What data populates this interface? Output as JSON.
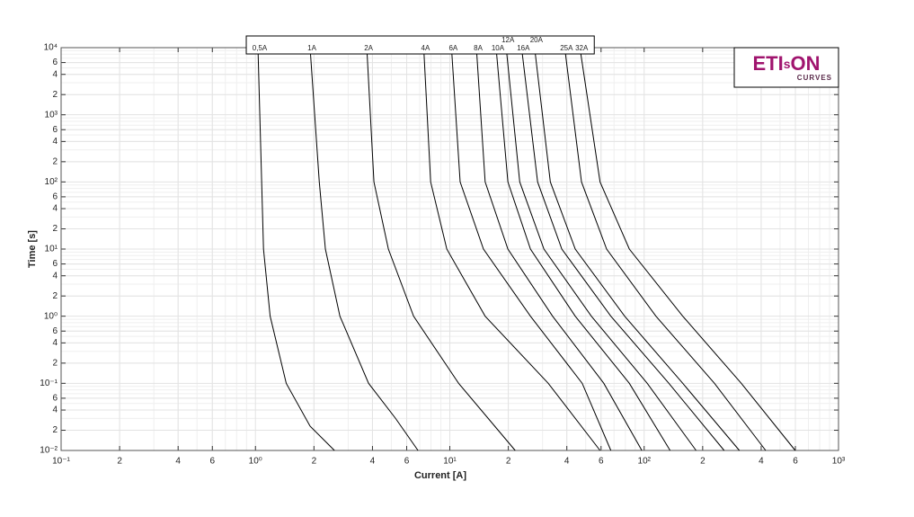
{
  "chart_data": {
    "type": "line",
    "xlabel": "Current [A]",
    "ylabel": "Time [s]",
    "xscale": "log",
    "yscale": "log",
    "grid": true,
    "minor_grid": true,
    "xlim": [
      0.1,
      1000
    ],
    "ylim": [
      0.01,
      10000
    ],
    "xticks": [
      {
        "value": 0.1,
        "label": "10⁻¹"
      },
      {
        "value": 0.2,
        "label": "2"
      },
      {
        "value": 0.4,
        "label": "4"
      },
      {
        "value": 0.6,
        "label": "6"
      },
      {
        "value": 1,
        "label": "10⁰"
      },
      2,
      4,
      6,
      {
        "value": 10,
        "label": "10¹"
      },
      {
        "value": 20,
        "label": "2"
      },
      {
        "value": 40,
        "label": "4"
      },
      {
        "value": 60,
        "label": "6"
      },
      {
        "value": 100,
        "label": "10²"
      },
      {
        "value": 200,
        "label": "2"
      },
      {
        "value": 400,
        "label": "4"
      },
      {
        "value": 600,
        "label": "6"
      },
      {
        "value": 1000,
        "label": "10³"
      }
    ],
    "yticks": [
      {
        "value": 0.01,
        "label": "10⁻²"
      },
      {
        "value": 0.02,
        "label": "2"
      },
      {
        "value": 0.04,
        "label": "4"
      },
      {
        "value": 0.06,
        "label": "6"
      },
      {
        "value": 0.1,
        "label": "10⁻¹"
      },
      {
        "value": 0.2,
        "label": "2"
      },
      {
        "value": 0.4,
        "label": "4"
      },
      {
        "value": 0.6,
        "label": "6"
      },
      {
        "value": 1,
        "label": "10⁰"
      },
      2,
      4,
      6,
      {
        "value": 10,
        "label": "10¹"
      },
      {
        "value": 20,
        "label": "2"
      },
      {
        "value": 40,
        "label": "4"
      },
      {
        "value": 60,
        "label": "6"
      },
      {
        "value": 100,
        "label": "10²"
      },
      {
        "value": 200,
        "label": "2"
      },
      {
        "value": 400,
        "label": "4"
      },
      {
        "value": 600,
        "label": "6"
      },
      {
        "value": 1000,
        "label": "10³"
      },
      {
        "value": 2000,
        "label": "2"
      },
      {
        "value": 4000,
        "label": "4"
      },
      {
        "value": 6000,
        "label": "6"
      },
      {
        "value": 10000,
        "label": "10⁴"
      }
    ],
    "series": [
      {
        "name": "0,5A",
        "color": "#000000",
        "x": [
          1.03,
          1.1,
          1.19,
          1.44,
          1.91,
          2.55
        ],
        "values": [
          10000,
          10,
          1,
          0.1,
          0.023,
          0.01
        ]
      },
      {
        "name": "1A",
        "color": "#000000",
        "x": [
          1.91,
          2.13,
          2.29,
          2.72,
          3.82,
          5.26,
          6.86
        ],
        "values": [
          10000,
          100,
          10,
          1,
          0.1,
          0.03,
          0.01
        ]
      },
      {
        "name": "2A",
        "color": "#000000",
        "x": [
          3.74,
          4.07,
          4.83,
          6.51,
          11.1,
          21.7
        ],
        "values": [
          10000,
          100,
          10,
          1,
          0.1,
          0.01
        ]
      },
      {
        "name": "4A",
        "color": "#000000",
        "x": [
          7.34,
          7.97,
          9.65,
          15.2,
          32.1,
          59.3
        ],
        "values": [
          10000,
          100,
          10,
          1,
          0.1,
          0.01
        ]
      },
      {
        "name": "6A",
        "color": "#000000",
        "x": [
          10.2,
          11.3,
          14.9,
          26.0,
          48.0,
          67.4
        ],
        "values": [
          10000,
          100,
          10,
          1,
          0.1,
          0.01
        ]
      },
      {
        "name": "8A",
        "color": "#000000",
        "x": [
          13.7,
          15.2,
          19.9,
          33.8,
          62.0,
          97.3
        ],
        "values": [
          10000,
          100,
          10,
          1,
          0.1,
          0.01
        ]
      },
      {
        "name": "10A",
        "color": "#000000",
        "x": [
          17.3,
          19.9,
          26.0,
          44.2,
          83.9,
          136
        ],
        "values": [
          10000,
          100,
          10,
          1,
          0.1,
          0.01
        ]
      },
      {
        "name": "12A",
        "color": "#000000",
        "x": [
          19.5,
          22.9,
          30.5,
          53.5,
          103.7,
          185
        ],
        "values": [
          10000,
          100,
          10,
          1,
          0.1,
          0.01
        ]
      },
      {
        "name": "16A",
        "color": "#000000",
        "x": [
          23.4,
          28.3,
          37.7,
          67.4,
          134,
          258
        ],
        "values": [
          10000,
          100,
          10,
          1,
          0.1,
          0.01
        ]
      },
      {
        "name": "20A",
        "color": "#000000",
        "x": [
          27.3,
          32.9,
          44.2,
          79.4,
          158,
          309
        ],
        "values": [
          10000,
          100,
          10,
          1,
          0.1,
          0.01
        ]
      },
      {
        "name": "25A",
        "color": "#000000",
        "x": [
          39.0,
          47.6,
          64.1,
          115,
          230,
          422
        ],
        "values": [
          10000,
          100,
          10,
          1,
          0.1,
          0.01
        ]
      },
      {
        "name": "32A",
        "color": "#000000",
        "x": [
          46.7,
          59.3,
          83.9,
          158,
          316,
          599
        ],
        "values": [
          10000,
          100,
          10,
          1,
          0.1,
          0.01
        ]
      }
    ]
  },
  "logo": {
    "parts": [
      "ETI",
      "s",
      "ON"
    ],
    "sub": "CURVES"
  }
}
